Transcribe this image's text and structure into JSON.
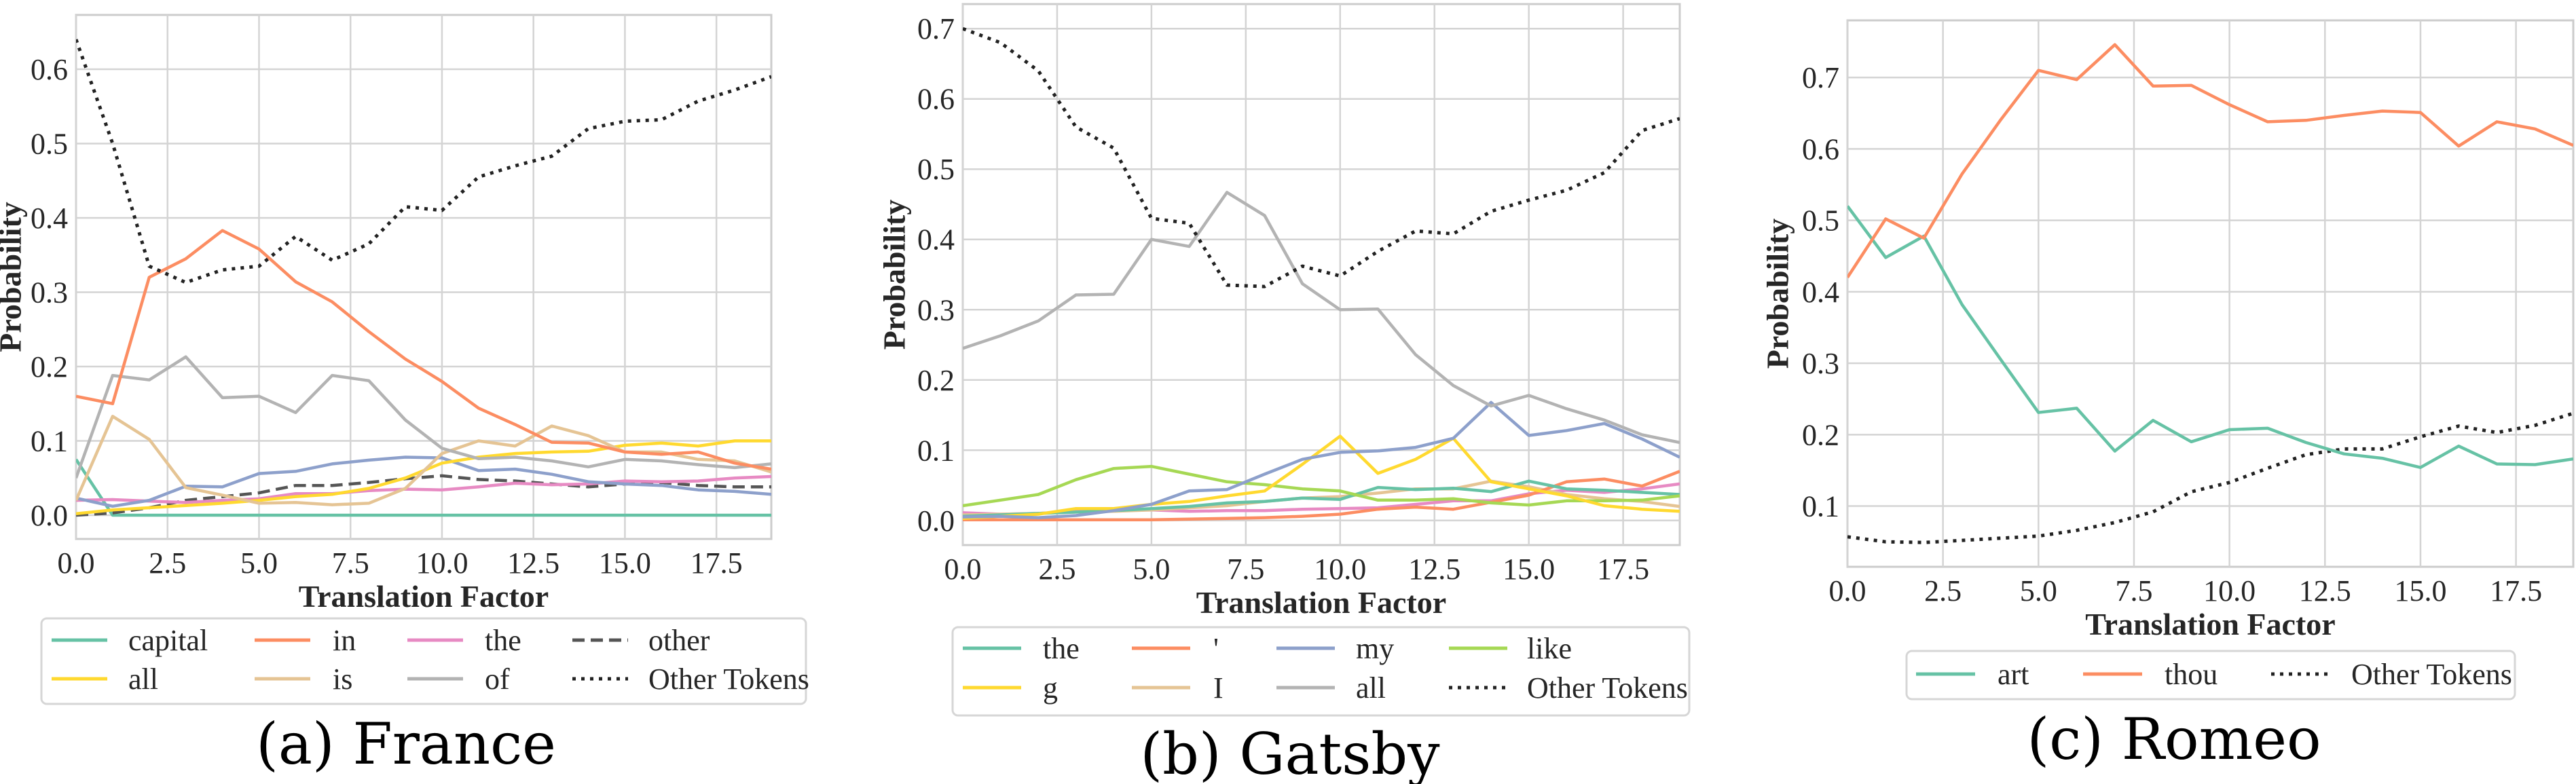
{
  "chart_data": [
    {
      "type": "line",
      "caption": "(a) France",
      "xlabel": "Translation Factor",
      "ylabel": "Probability",
      "xlim": [
        0,
        19
      ],
      "ylim": [
        -0.032,
        0.673
      ],
      "xticks": [
        "0.0",
        "2.5",
        "5.0",
        "7.5",
        "10.0",
        "12.5",
        "15.0",
        "17.5"
      ],
      "yticks": [
        "0.0",
        "0.1",
        "0.2",
        "0.3",
        "0.4",
        "0.5",
        "0.6"
      ],
      "grid": true,
      "legend_placement": "below",
      "x": [
        0,
        1,
        2,
        3,
        4,
        5,
        6,
        7,
        8,
        9,
        10,
        11,
        12,
        13,
        14,
        15,
        16,
        17,
        18,
        19
      ],
      "series": [
        {
          "name": "Other Tokens",
          "color": "#222222",
          "style": "dotted",
          "values": [
            0.64,
            0.5,
            0.335,
            0.313,
            0.33,
            0.335,
            0.375,
            0.343,
            0.365,
            0.415,
            0.41,
            0.455,
            0.47,
            0.483,
            0.52,
            0.53,
            0.532,
            0.557,
            0.572,
            0.59
          ]
        },
        {
          "name": "in",
          "color": "#fc8d62",
          "style": "solid",
          "values": [
            0.16,
            0.15,
            0.32,
            0.345,
            0.383,
            0.358,
            0.314,
            0.287,
            0.247,
            0.21,
            0.18,
            0.144,
            0.122,
            0.098,
            0.097,
            0.085,
            0.082,
            0.085,
            0.07,
            0.062
          ]
        },
        {
          "name": "of",
          "color": "#b3b3b3",
          "style": "solid",
          "values": [
            0.05,
            0.188,
            0.182,
            0.213,
            0.158,
            0.16,
            0.138,
            0.188,
            0.181,
            0.128,
            0.09,
            0.076,
            0.078,
            0.073,
            0.065,
            0.075,
            0.073,
            0.068,
            0.064,
            0.069
          ]
        },
        {
          "name": "is",
          "color": "#e5c494",
          "style": "solid",
          "values": [
            0.02,
            0.133,
            0.102,
            0.037,
            0.027,
            0.016,
            0.017,
            0.014,
            0.016,
            0.036,
            0.083,
            0.1,
            0.093,
            0.12,
            0.107,
            0.085,
            0.085,
            0.075,
            0.073,
            0.058
          ]
        },
        {
          "name": "all",
          "color": "#ffd92f",
          "style": "solid",
          "values": [
            0.002,
            0.007,
            0.01,
            0.013,
            0.016,
            0.02,
            0.025,
            0.028,
            0.036,
            0.05,
            0.07,
            0.078,
            0.083,
            0.085,
            0.086,
            0.094,
            0.097,
            0.093,
            0.1,
            0.1
          ]
        },
        {
          "color": "#8da0cb",
          "style": "solid",
          "values": [
            0.023,
            0.012,
            0.02,
            0.039,
            0.038,
            0.056,
            0.059,
            0.069,
            0.074,
            0.078,
            0.077,
            0.06,
            0.062,
            0.055,
            0.045,
            0.042,
            0.04,
            0.034,
            0.032,
            0.028
          ]
        },
        {
          "name": "the",
          "color": "#e78ac3",
          "style": "solid",
          "values": [
            0.02,
            0.021,
            0.019,
            0.017,
            0.02,
            0.022,
            0.029,
            0.029,
            0.033,
            0.035,
            0.034,
            0.038,
            0.043,
            0.041,
            0.042,
            0.046,
            0.045,
            0.046,
            0.05,
            0.052
          ]
        },
        {
          "name": "other",
          "color": "#555555",
          "style": "dashed",
          "values": [
            0,
            0.003,
            0.01,
            0.02,
            0.025,
            0.03,
            0.04,
            0.04,
            0.044,
            0.049,
            0.053,
            0.048,
            0.046,
            0.042,
            0.038,
            0.042,
            0.044,
            0.04,
            0.038,
            0.038
          ]
        },
        {
          "name": "capital",
          "color": "#66c2a5",
          "style": "solid",
          "values": [
            0.075,
            0,
            0,
            0,
            0,
            0,
            0,
            0,
            0,
            0,
            0,
            0,
            0,
            0,
            0,
            0,
            0,
            0,
            0,
            0
          ]
        }
      ],
      "legend": [
        "capital",
        "all",
        "in",
        "is",
        "the",
        "of",
        "other",
        "Other Tokens"
      ]
    },
    {
      "type": "line",
      "caption": "(b) Gatsby",
      "xlabel": "Translation Factor",
      "ylabel": "Probability",
      "xlim": [
        0,
        19
      ],
      "ylim": [
        -0.035,
        0.735
      ],
      "xticks": [
        "0.0",
        "2.5",
        "5.0",
        "7.5",
        "10.0",
        "12.5",
        "15.0",
        "17.5"
      ],
      "yticks": [
        "0.0",
        "0.1",
        "0.2",
        "0.3",
        "0.4",
        "0.5",
        "0.6",
        "0.7"
      ],
      "grid": true,
      "legend_placement": "below",
      "x": [
        0,
        1,
        2,
        3,
        4,
        5,
        6,
        7,
        8,
        9,
        10,
        11,
        12,
        13,
        14,
        15,
        16,
        17,
        18,
        19
      ],
      "series": [
        {
          "name": "Other Tokens",
          "color": "#222222",
          "style": "dotted",
          "values": [
            0.7,
            0.68,
            0.64,
            0.56,
            0.53,
            0.43,
            0.423,
            0.335,
            0.333,
            0.362,
            0.348,
            0.383,
            0.412,
            0.408,
            0.44,
            0.456,
            0.47,
            0.495,
            0.555,
            0.572
          ]
        },
        {
          "name": "all",
          "color": "#b3b3b3",
          "style": "solid",
          "values": [
            0.245,
            0.263,
            0.284,
            0.321,
            0.322,
            0.4,
            0.39,
            0.467,
            0.434,
            0.337,
            0.3,
            0.301,
            0.236,
            0.192,
            0.163,
            0.178,
            0.159,
            0.143,
            0.122,
            0.111
          ]
        },
        {
          "name": "my",
          "color": "#8da0cb",
          "style": "solid",
          "values": [
            0.005,
            0.006,
            0.004,
            0.007,
            0.014,
            0.023,
            0.042,
            0.044,
            0.066,
            0.087,
            0.097,
            0.099,
            0.104,
            0.117,
            0.168,
            0.121,
            0.128,
            0.138,
            0.116,
            0.09
          ]
        },
        {
          "name": "g",
          "color": "#ffd92f",
          "style": "solid",
          "values": [
            0.003,
            0.006,
            0.009,
            0.017,
            0.017,
            0.023,
            0.027,
            0.035,
            0.042,
            0.08,
            0.12,
            0.067,
            0.087,
            0.117,
            0.055,
            0.045,
            0.035,
            0.021,
            0.016,
            0.013
          ]
        },
        {
          "name": "like",
          "color": "#a6d854",
          "style": "solid",
          "values": [
            0.021,
            0.029,
            0.037,
            0.058,
            0.074,
            0.077,
            0.066,
            0.055,
            0.051,
            0.045,
            0.042,
            0.029,
            0.029,
            0.031,
            0.025,
            0.022,
            0.028,
            0.028,
            0.029,
            0.035
          ]
        },
        {
          "name": "the",
          "color": "#66c2a5",
          "style": "solid",
          "values": [
            0.006,
            0.008,
            0.01,
            0.012,
            0.014,
            0.017,
            0.02,
            0.025,
            0.027,
            0.032,
            0.03,
            0.047,
            0.044,
            0.046,
            0.041,
            0.056,
            0.045,
            0.043,
            0.04,
            0.037
          ]
        },
        {
          "name": "'",
          "color": "#fc8d62",
          "style": "solid",
          "values": [
            0.001,
            0.001,
            0.001,
            0.001,
            0.001,
            0.001,
            0.002,
            0.003,
            0.004,
            0.006,
            0.009,
            0.016,
            0.019,
            0.016,
            0.026,
            0.036,
            0.055,
            0.059,
            0.049,
            0.07
          ]
        },
        {
          "name": "I",
          "color": "#e5c494",
          "style": "solid",
          "values": [
            0.008,
            0.009,
            0.01,
            0.012,
            0.013,
            0.015,
            0.018,
            0.021,
            0.027,
            0.032,
            0.034,
            0.039,
            0.045,
            0.045,
            0.056,
            0.048,
            0.037,
            0.031,
            0.027,
            0.02
          ]
        },
        {
          "color": "#e78ac3",
          "style": "solid",
          "values": [
            0.011,
            0.009,
            0.01,
            0.013,
            0.014,
            0.015,
            0.013,
            0.014,
            0.014,
            0.016,
            0.017,
            0.018,
            0.023,
            0.028,
            0.028,
            0.038,
            0.043,
            0.04,
            0.045,
            0.052
          ]
        }
      ],
      "legend": [
        "the",
        "g",
        "'",
        "I",
        "my",
        "all",
        "like",
        "Other Tokens"
      ]
    },
    {
      "type": "line",
      "caption": "(c) Romeo",
      "xlabel": "Translation Factor",
      "ylabel": "Probability",
      "xlim": [
        0,
        19
      ],
      "ylim": [
        0.015,
        0.78
      ],
      "xticks": [
        "0.0",
        "2.5",
        "5.0",
        "7.5",
        "10.0",
        "12.5",
        "15.0",
        "17.5"
      ],
      "yticks": [
        "0.1",
        "0.2",
        "0.3",
        "0.4",
        "0.5",
        "0.6",
        "0.7"
      ],
      "grid": true,
      "legend_placement": "below",
      "x": [
        0,
        1,
        2,
        3,
        4,
        5,
        6,
        7,
        8,
        9,
        10,
        11,
        12,
        13,
        14,
        15,
        16,
        17,
        18,
        19
      ],
      "series": [
        {
          "name": "thou",
          "color": "#fc8d62",
          "style": "solid",
          "values": [
            0.42,
            0.502,
            0.475,
            0.565,
            0.64,
            0.71,
            0.697,
            0.746,
            0.688,
            0.689,
            0.662,
            0.638,
            0.64,
            0.647,
            0.653,
            0.651,
            0.604,
            0.638,
            0.628,
            0.605
          ]
        },
        {
          "name": "art",
          "color": "#66c2a5",
          "style": "solid",
          "values": [
            0.52,
            0.448,
            0.478,
            0.382,
            0.306,
            0.231,
            0.237,
            0.177,
            0.22,
            0.19,
            0.207,
            0.209,
            0.189,
            0.173,
            0.167,
            0.154,
            0.184,
            0.159,
            0.158,
            0.166
          ]
        },
        {
          "name": "Other Tokens",
          "color": "#222222",
          "style": "dotted",
          "values": [
            0.057,
            0.05,
            0.049,
            0.052,
            0.055,
            0.058,
            0.066,
            0.077,
            0.092,
            0.12,
            0.133,
            0.153,
            0.172,
            0.18,
            0.18,
            0.197,
            0.212,
            0.203,
            0.213,
            0.23
          ]
        }
      ],
      "legend": [
        "art",
        "thou",
        "Other Tokens"
      ]
    }
  ]
}
